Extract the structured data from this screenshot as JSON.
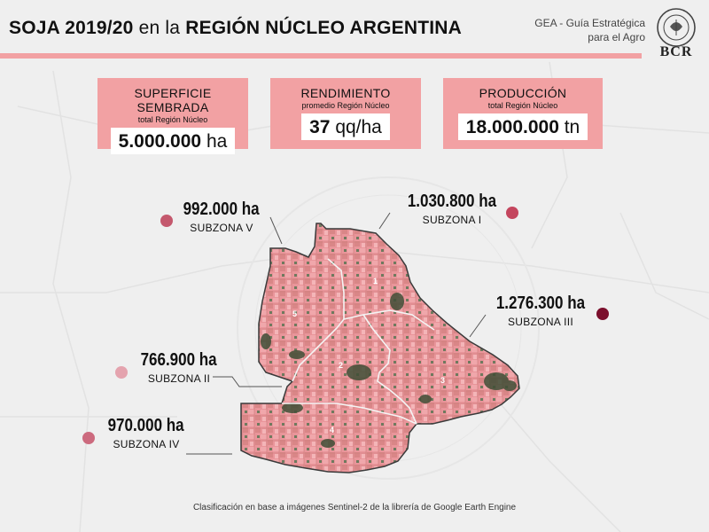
{
  "header": {
    "title_bold_1": "SOJA 2019/20",
    "title_light": "en la",
    "title_bold_2": "REGIÓN NÚCLEO ARGENTINA",
    "source_line_1": "GEA - Guía Estratégica",
    "source_line_2": "para el Agro",
    "logo_text": "BCR"
  },
  "kpis": [
    {
      "label": "SUPERFICIE SEMBRADA",
      "sub": "total Región Núcleo",
      "value": "5.000.000",
      "unit": "ha"
    },
    {
      "label": "RENDIMIENTO",
      "sub": "promedio Región Núcleo",
      "value": "37",
      "unit": "qq/ha"
    },
    {
      "label": "PRODUCCIÓN",
      "sub": "total Región Núcleo",
      "value": "18.000.000",
      "unit": "tn"
    }
  ],
  "zones": [
    {
      "id": "V",
      "area": "992.000 ha",
      "name": "SUBZONA V",
      "map_number": "5",
      "color": "#c4586d"
    },
    {
      "id": "I",
      "area": "1.030.800 ha",
      "name": "SUBZONA I",
      "map_number": "1",
      "color": "#c4465e"
    },
    {
      "id": "III",
      "area": "1.276.300 ha",
      "name": "SUBZONA III",
      "map_number": "3",
      "color": "#7b0f2c"
    },
    {
      "id": "II",
      "area": "766.900 ha",
      "name": "SUBZONA II",
      "map_number": "2",
      "color": "#e4a3ae"
    },
    {
      "id": "IV",
      "area": "970.000 ha",
      "name": "SUBZONA IV",
      "map_number": "4",
      "color": "#cc6a7e"
    }
  ],
  "colors": {
    "accent": "#f2a1a3",
    "crop": "#e9959a",
    "crop_dark": "#c97a78",
    "vegetation": "#3f4e36",
    "background": "#efefef"
  },
  "footnote": "Clasificación en base a imágenes Sentinel-2 de la librería de Google Earth Engine"
}
